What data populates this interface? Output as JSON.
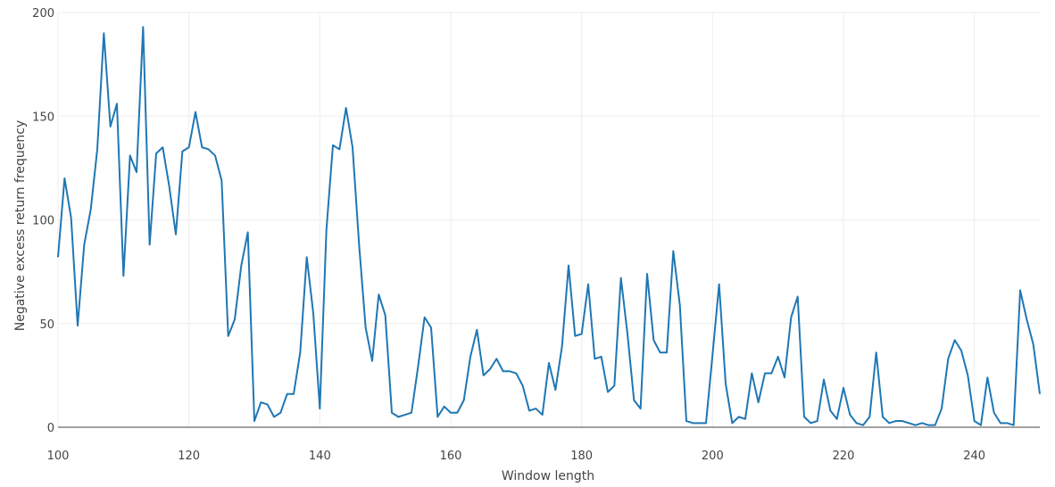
{
  "chart_data": {
    "type": "line",
    "xlabel": "Window length",
    "ylabel": "Negative excess return frequency",
    "xlim": [
      100,
      250
    ],
    "ylim": [
      0,
      200
    ],
    "xticks": [
      100,
      120,
      140,
      160,
      180,
      200,
      220,
      240
    ],
    "yticks": [
      0,
      50,
      100,
      150,
      200
    ],
    "grid": true,
    "series": [
      {
        "color": "#1f77b4",
        "x": [
          100,
          101,
          102,
          103,
          104,
          105,
          106,
          107,
          108,
          109,
          110,
          111,
          112,
          113,
          114,
          115,
          116,
          117,
          118,
          119,
          120,
          121,
          122,
          123,
          124,
          125,
          126,
          127,
          128,
          129,
          130,
          131,
          132,
          133,
          134,
          135,
          136,
          137,
          138,
          139,
          140,
          141,
          142,
          143,
          144,
          145,
          146,
          147,
          148,
          149,
          150,
          151,
          152,
          153,
          154,
          155,
          156,
          157,
          158,
          159,
          160,
          161,
          162,
          163,
          164,
          165,
          166,
          167,
          168,
          169,
          170,
          171,
          172,
          173,
          174,
          175,
          176,
          177,
          178,
          179,
          180,
          181,
          182,
          183,
          184,
          185,
          186,
          187,
          188,
          189,
          190,
          191,
          192,
          193,
          194,
          195,
          196,
          197,
          198,
          199,
          200,
          201,
          202,
          203,
          204,
          205,
          206,
          207,
          208,
          209,
          210,
          211,
          212,
          213,
          214,
          215,
          216,
          217,
          218,
          219,
          220,
          221,
          222,
          223,
          224,
          225,
          226,
          227,
          228,
          229,
          230,
          231,
          232,
          233,
          234,
          235,
          236,
          237,
          238,
          239,
          240,
          241,
          242,
          243,
          244,
          245,
          246,
          247,
          248,
          249,
          250
        ],
        "values": [
          82,
          120,
          101,
          49,
          88,
          105,
          134,
          190,
          145,
          156,
          73,
          131,
          123,
          193,
          88,
          132,
          135,
          116,
          93,
          133,
          135,
          152,
          135,
          134,
          131,
          119,
          44,
          52,
          78,
          94,
          3,
          12,
          11,
          5,
          7,
          16,
          16,
          36,
          82,
          55,
          9,
          95,
          136,
          134,
          154,
          135,
          88,
          48,
          32,
          64,
          54,
          7,
          5,
          6,
          7,
          29,
          53,
          48,
          5,
          10,
          7,
          7,
          13,
          34,
          47,
          25,
          28,
          33,
          27,
          27,
          26,
          20,
          8,
          9,
          6,
          31,
          18,
          39,
          78,
          44,
          45,
          69,
          33,
          34,
          17,
          20,
          72,
          45,
          13,
          9,
          74,
          42,
          36,
          36,
          85,
          59,
          3,
          2,
          2,
          2,
          35,
          69,
          21,
          2,
          5,
          4,
          26,
          12,
          26,
          26,
          34,
          24,
          53,
          63,
          5,
          2,
          3,
          23,
          8,
          4,
          19,
          6,
          2,
          1,
          5,
          36,
          5,
          2,
          3,
          3,
          2,
          1,
          2,
          1,
          1,
          9,
          33,
          42,
          37,
          25,
          3,
          1,
          24,
          7,
          2,
          2,
          1,
          66,
          52,
          40,
          16
        ]
      }
    ]
  }
}
